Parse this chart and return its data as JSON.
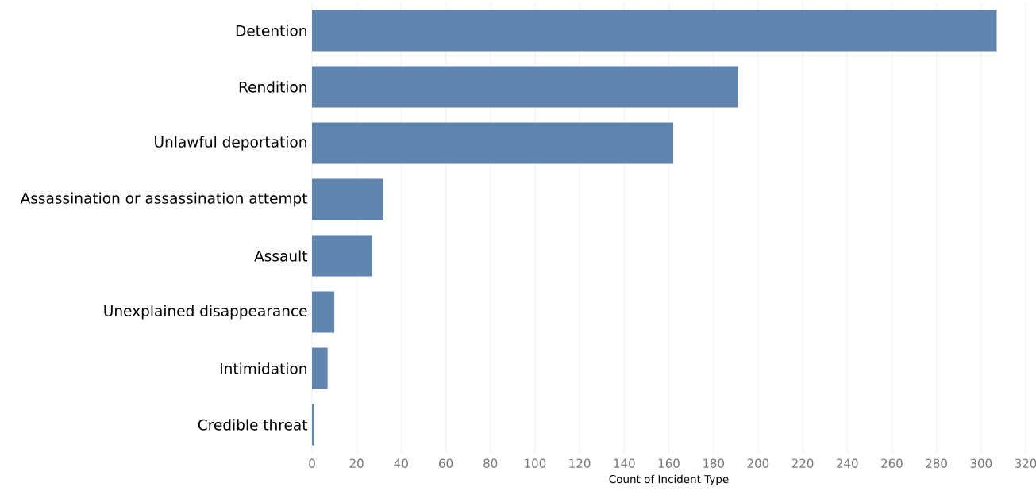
{
  "chart_data": {
    "type": "bar",
    "orientation": "horizontal",
    "xlabel": "Count of Incident Type",
    "categories": [
      "Detention",
      "Rendition",
      "Unlawful deportation",
      "Assassination or assassination attempt",
      "Assault",
      "Unexplained disappearance",
      "Intimidation",
      "Credible threat"
    ],
    "values": [
      307,
      191,
      162,
      32,
      27,
      10,
      7,
      1
    ],
    "color": "#5f84ad",
    "xlim": [
      0,
      320
    ],
    "xticks": [
      0,
      20,
      40,
      60,
      80,
      100,
      120,
      140,
      160,
      180,
      200,
      220,
      240,
      260,
      280,
      300,
      320
    ],
    "grid": "x"
  }
}
